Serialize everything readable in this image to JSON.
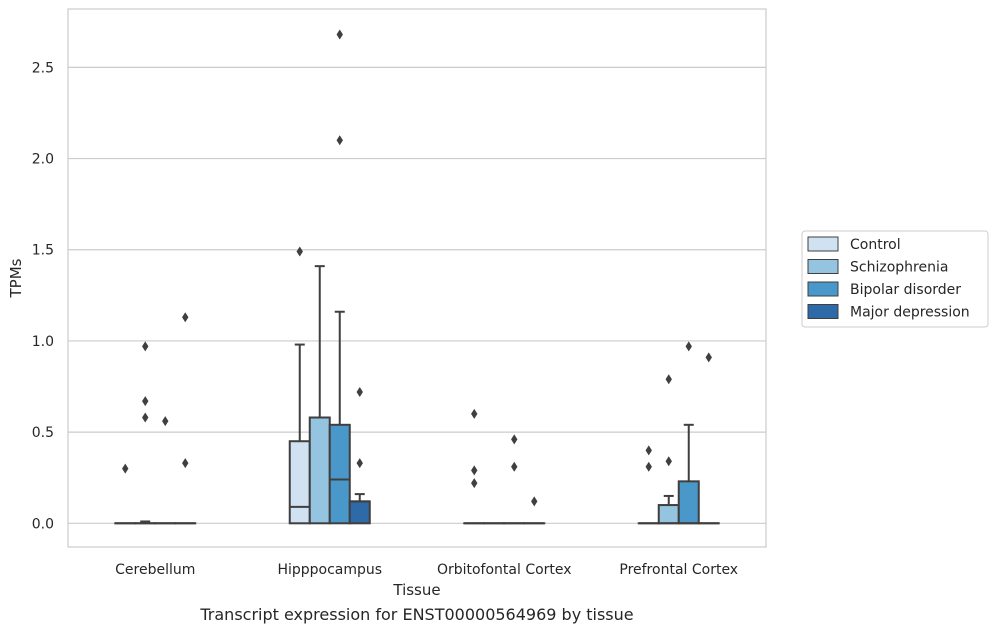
{
  "caption": "Transcript expression for ENST00000564969 by tissue",
  "chart_data": {
    "type": "box",
    "title": "",
    "xlabel": "Tissue",
    "ylabel": "TPMs",
    "ylim": [
      -0.13,
      2.82
    ],
    "yticks": [
      0.0,
      0.5,
      1.0,
      1.5,
      2.0,
      2.5
    ],
    "ytick_labels": [
      "0.0",
      "0.5",
      "1.0",
      "1.5",
      "2.0",
      "2.5"
    ],
    "grid": "horizontal",
    "legend_position": "right",
    "categories": [
      "Cerebellum",
      "Hipppocampus",
      "Orbitofontal Cortex",
      "Prefrontal Cortex"
    ],
    "series": [
      {
        "name": "Control",
        "color": "#d0e1f2",
        "boxes": [
          {
            "q1": 0.0,
            "median": 0.0,
            "q3": 0.0,
            "whisker_low": 0.0,
            "whisker_high": 0.0,
            "outliers": [
              0.3
            ]
          },
          {
            "q1": 0.0,
            "median": 0.09,
            "q3": 0.45,
            "whisker_low": 0.0,
            "whisker_high": 0.98,
            "outliers": [
              1.49
            ]
          },
          {
            "q1": 0.0,
            "median": 0.0,
            "q3": 0.0,
            "whisker_low": 0.0,
            "whisker_high": 0.0,
            "outliers": [
              0.22,
              0.29,
              0.6
            ]
          },
          {
            "q1": 0.0,
            "median": 0.0,
            "q3": 0.0,
            "whisker_low": 0.0,
            "whisker_high": 0.0,
            "outliers": [
              0.31,
              0.4
            ]
          }
        ]
      },
      {
        "name": "Schizophrenia",
        "color": "#94c4df",
        "boxes": [
          {
            "q1": 0.0,
            "median": 0.0,
            "q3": 0.0,
            "whisker_low": 0.0,
            "whisker_high": 0.01,
            "outliers": [
              0.58,
              0.67,
              0.97
            ]
          },
          {
            "q1": 0.0,
            "median": 0.58,
            "q3": 0.58,
            "whisker_low": 0.0,
            "whisker_high": 1.41,
            "outliers": []
          },
          {
            "q1": 0.0,
            "median": 0.0,
            "q3": 0.0,
            "whisker_low": 0.0,
            "whisker_high": 0.0,
            "outliers": []
          },
          {
            "q1": 0.0,
            "median": 0.0,
            "q3": 0.1,
            "whisker_low": 0.0,
            "whisker_high": 0.15,
            "outliers": [
              0.34,
              0.79
            ]
          }
        ]
      },
      {
        "name": "Bipolar disorder",
        "color": "#4a98c9",
        "boxes": [
          {
            "q1": 0.0,
            "median": 0.0,
            "q3": 0.0,
            "whisker_low": 0.0,
            "whisker_high": 0.0,
            "outliers": [
              0.56
            ]
          },
          {
            "q1": 0.0,
            "median": 0.24,
            "q3": 0.54,
            "whisker_low": 0.0,
            "whisker_high": 1.16,
            "outliers": [
              2.1,
              2.68
            ]
          },
          {
            "q1": 0.0,
            "median": 0.0,
            "q3": 0.0,
            "whisker_low": 0.0,
            "whisker_high": 0.0,
            "outliers": [
              0.31,
              0.46
            ]
          },
          {
            "q1": 0.0,
            "median": 0.0,
            "q3": 0.23,
            "whisker_low": 0.0,
            "whisker_high": 0.54,
            "outliers": [
              0.97
            ]
          }
        ]
      },
      {
        "name": "Major depression",
        "color": "#2e6aa8",
        "boxes": [
          {
            "q1": 0.0,
            "median": 0.0,
            "q3": 0.0,
            "whisker_low": 0.0,
            "whisker_high": 0.0,
            "outliers": [
              0.33,
              1.13
            ]
          },
          {
            "q1": 0.0,
            "median": 0.12,
            "q3": 0.12,
            "whisker_low": 0.0,
            "whisker_high": 0.16,
            "outliers": [
              0.33,
              0.72
            ]
          },
          {
            "q1": 0.0,
            "median": 0.0,
            "q3": 0.0,
            "whisker_low": 0.0,
            "whisker_high": 0.0,
            "outliers": [
              0.12
            ]
          },
          {
            "q1": 0.0,
            "median": 0.0,
            "q3": 0.0,
            "whisker_low": 0.0,
            "whisker_high": 0.0,
            "outliers": [
              0.91
            ]
          }
        ]
      }
    ]
  }
}
